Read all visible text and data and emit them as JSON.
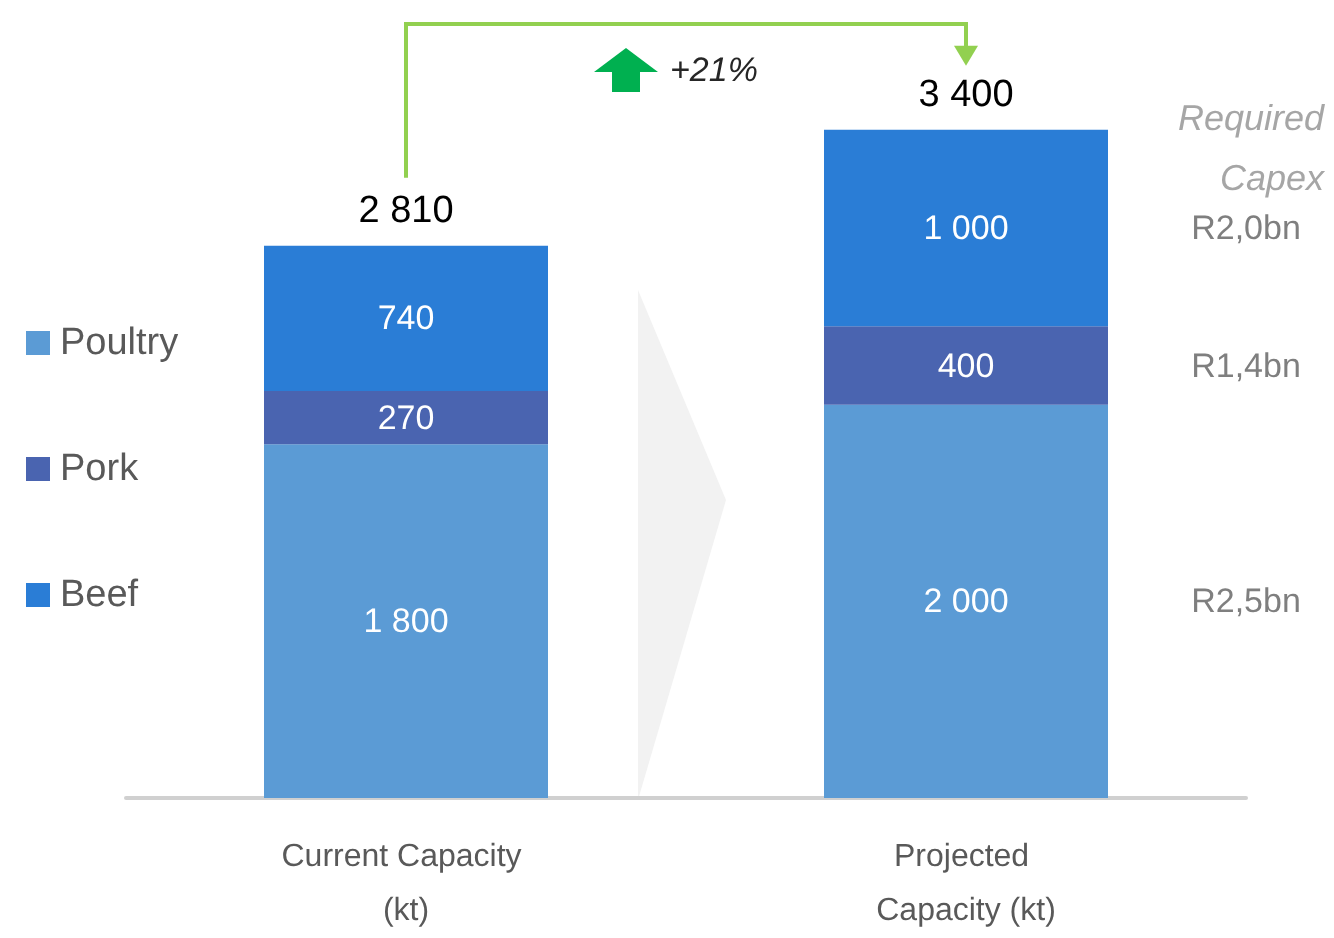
{
  "chart_data": {
    "type": "bar",
    "stacked": true,
    "categories": [
      "Current Capacity (kt)",
      "Projected Capacity (kt)"
    ],
    "series": [
      {
        "name": "Poultry",
        "color": "#5b9bd5",
        "values": [
          1800,
          2000
        ],
        "value_labels": [
          "1 800",
          "2 000"
        ]
      },
      {
        "name": "Pork",
        "color": "#4a64b0",
        "values": [
          270,
          400
        ],
        "value_labels": [
          "270",
          "400"
        ]
      },
      {
        "name": "Beef",
        "color": "#2a7dd6",
        "values": [
          740,
          1000
        ],
        "value_labels": [
          "740",
          "1 000"
        ]
      }
    ],
    "totals": [
      "2 810",
      "3 400"
    ],
    "legend": "left",
    "annotations": [
      "+21%",
      "Required Capex",
      "R2,0bn",
      "R1,4bn",
      "R2,5bn"
    ]
  }
}
